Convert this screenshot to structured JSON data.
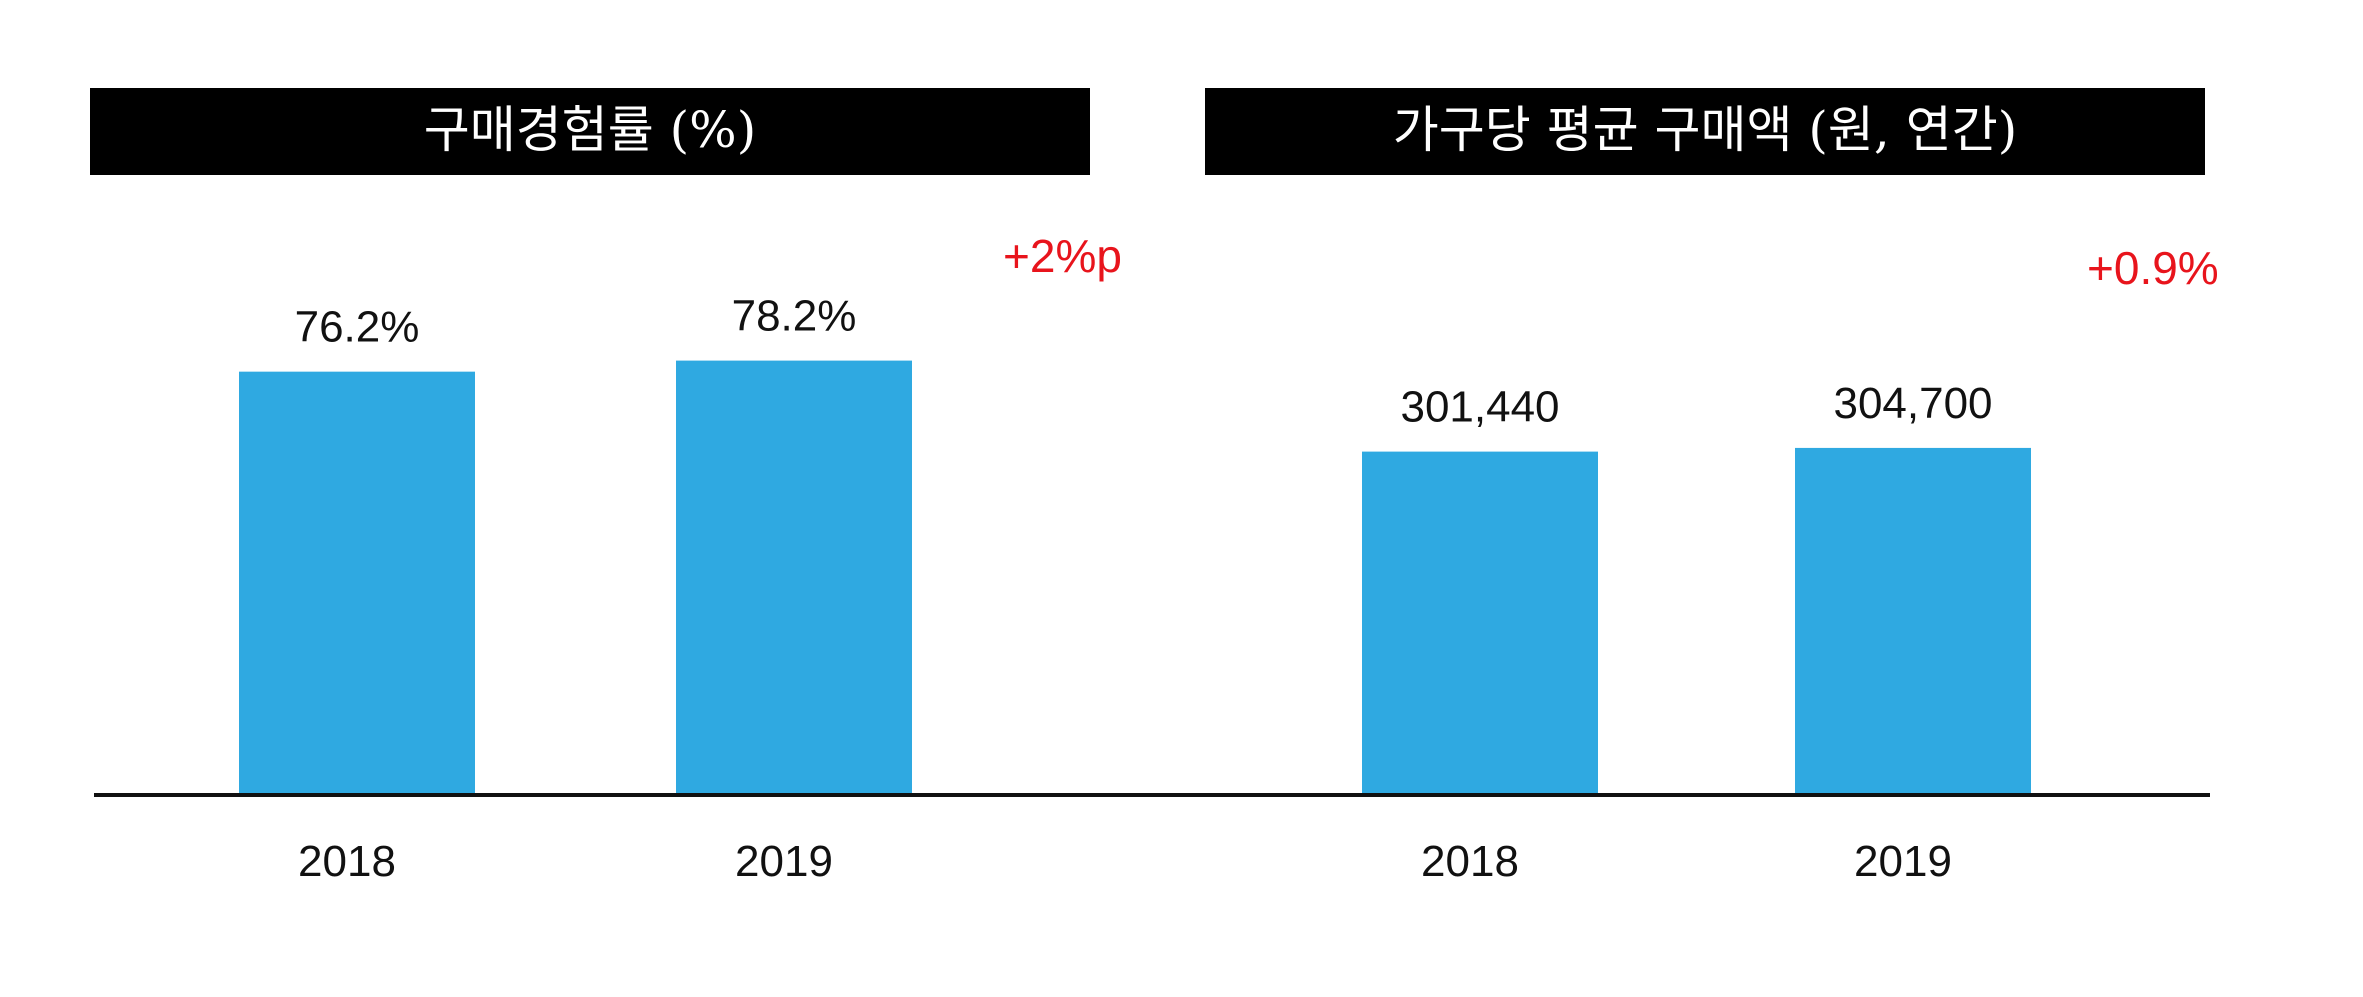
{
  "colors": {
    "bar": "#2fa9e1",
    "title_bg": "#000000",
    "title_text": "#ffffff",
    "axis": "#111111",
    "change": "#e8141c"
  },
  "chart_data": [
    {
      "type": "bar",
      "title": "구매경험률 (%)",
      "categories": [
        "2018",
        "2019"
      ],
      "values": [
        76.2,
        78.2
      ],
      "value_labels": [
        "76.2%",
        "78.2%"
      ],
      "change_label": "+2%p",
      "ylim": [
        0,
        85
      ]
    },
    {
      "type": "bar",
      "title": "가구당 평균 구매액 (원, 연간)",
      "categories": [
        "2018",
        "2019"
      ],
      "values": [
        301440,
        304700
      ],
      "value_labels": [
        "301,440",
        "304,700"
      ],
      "change_label": "+0.9%",
      "ylim": [
        0,
        415000
      ]
    }
  ]
}
